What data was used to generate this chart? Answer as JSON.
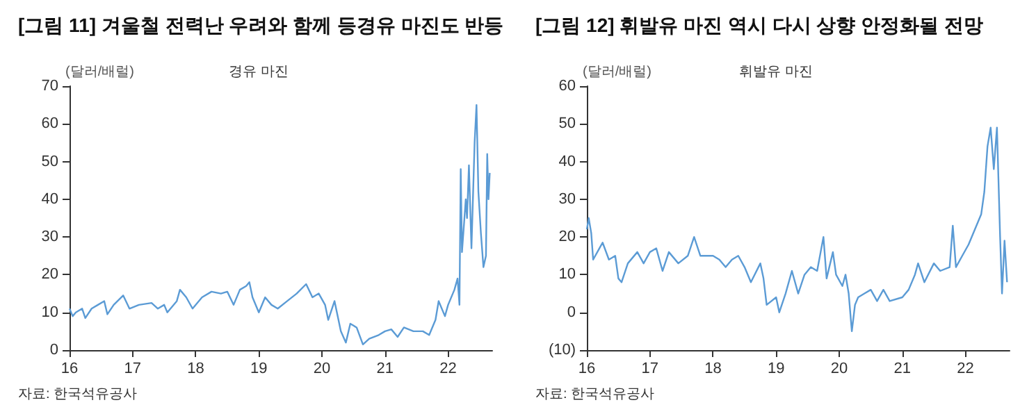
{
  "chart_data": [
    {
      "type": "line",
      "title": "[그림 11] 겨울철 전력난 우려와 함께 등경유 마진도 반등",
      "subtitle": "경유 마진",
      "ylabel": "(달러/배럴)",
      "annotations": [
        "자료: 한국석유공사"
      ],
      "series": [
        {
          "color": "#5b9bd5",
          "x": [
            16.0,
            16.05,
            16.1,
            16.2,
            16.25,
            16.35,
            16.45,
            16.55,
            16.6,
            16.7,
            16.85,
            16.95,
            17.1,
            17.3,
            17.4,
            17.5,
            17.55,
            17.7,
            17.75,
            17.85,
            17.95,
            18.1,
            18.25,
            18.4,
            18.5,
            18.6,
            18.7,
            18.8,
            18.85,
            18.9,
            19.0,
            19.1,
            19.2,
            19.3,
            19.45,
            19.6,
            19.75,
            19.85,
            19.95,
            20.05,
            20.1,
            20.2,
            20.3,
            20.38,
            20.45,
            20.55,
            20.65,
            20.75,
            20.9,
            21.0,
            21.1,
            21.2,
            21.3,
            21.45,
            21.6,
            21.7,
            21.8,
            21.85,
            21.95,
            22.0,
            22.1,
            22.15,
            22.18,
            22.2,
            22.22,
            22.28,
            22.3,
            22.33,
            22.37,
            22.42,
            22.45,
            22.48,
            22.52,
            22.56,
            22.6,
            22.62,
            22.64,
            22.66
          ],
          "values": [
            11,
            9,
            10,
            11,
            8.5,
            11,
            12,
            13,
            9.5,
            12,
            14.5,
            11,
            12,
            12.5,
            11,
            12,
            10,
            13,
            16,
            14,
            11,
            14,
            15.5,
            15,
            15.5,
            12,
            16,
            17,
            18,
            14,
            10,
            14,
            12,
            11,
            13,
            15,
            17.5,
            14,
            15,
            12,
            8,
            13,
            5,
            2,
            7,
            6,
            1.5,
            3,
            4,
            5,
            5.5,
            3.5,
            6,
            5,
            5,
            4,
            8,
            13,
            9,
            12,
            16,
            19,
            12,
            48,
            26,
            40,
            35,
            49,
            27,
            55,
            65,
            42,
            31,
            22,
            25,
            52,
            40,
            47
          ]
        }
      ],
      "xlim": [
        16,
        22.7
      ],
      "xticks": [
        {
          "value": 16,
          "label": "16"
        },
        {
          "value": 17,
          "label": "17"
        },
        {
          "value": 18,
          "label": "18"
        },
        {
          "value": 19,
          "label": "19"
        },
        {
          "value": 20,
          "label": "20"
        },
        {
          "value": 21,
          "label": "21"
        },
        {
          "value": 22,
          "label": "22"
        }
      ],
      "ylim": [
        0,
        70
      ],
      "yticks": [
        0,
        10,
        20,
        30,
        40,
        50,
        60,
        70
      ],
      "grid": false,
      "marker": "none",
      "line_style": "solid"
    },
    {
      "type": "line",
      "title": "[그림 12] 휘발유 마진 역시 다시 상향 안정화될 전망",
      "subtitle": "휘발유 마진",
      "ylabel": "(달러/배럴)",
      "annotations": [
        "자료: 한국석유공사"
      ],
      "series": [
        {
          "color": "#5b9bd5",
          "x": [
            16.0,
            16.03,
            16.07,
            16.1,
            16.2,
            16.25,
            16.35,
            16.45,
            16.5,
            16.55,
            16.65,
            16.8,
            16.9,
            17.0,
            17.1,
            17.2,
            17.3,
            17.45,
            17.6,
            17.7,
            17.8,
            18.0,
            18.1,
            18.2,
            18.3,
            18.4,
            18.5,
            18.6,
            18.75,
            18.8,
            18.85,
            19.0,
            19.05,
            19.15,
            19.25,
            19.35,
            19.45,
            19.55,
            19.65,
            19.75,
            19.8,
            19.9,
            19.95,
            20.05,
            20.1,
            20.15,
            20.2,
            20.25,
            20.3,
            20.4,
            20.5,
            20.6,
            20.7,
            20.8,
            21.0,
            21.1,
            21.2,
            21.25,
            21.35,
            21.5,
            21.6,
            21.75,
            21.8,
            21.85,
            21.95,
            22.05,
            22.15,
            22.25,
            22.3,
            22.35,
            22.4,
            22.45,
            22.5,
            22.55,
            22.58,
            22.62,
            22.66
          ],
          "values": [
            22,
            25,
            21,
            14,
            17,
            18.5,
            14,
            15,
            9,
            8,
            13,
            16,
            13,
            16,
            17,
            11,
            16,
            13,
            15,
            20,
            15,
            15,
            14,
            12,
            14,
            15,
            12,
            8,
            13,
            9,
            2,
            4,
            0,
            5,
            11,
            5,
            10,
            12,
            11,
            20,
            9,
            16,
            10,
            7,
            10,
            5,
            -5,
            2,
            4,
            5,
            6,
            3,
            6,
            3,
            4,
            6,
            10,
            13,
            8,
            13,
            11,
            12,
            23,
            12,
            15,
            18,
            22,
            26,
            32,
            44,
            49,
            38,
            49,
            20,
            5,
            19,
            8
          ]
        }
      ],
      "xlim": [
        16,
        22.7
      ],
      "xticks": [
        {
          "value": 16,
          "label": "16"
        },
        {
          "value": 17,
          "label": "17"
        },
        {
          "value": 18,
          "label": "18"
        },
        {
          "value": 19,
          "label": "19"
        },
        {
          "value": 20,
          "label": "20"
        },
        {
          "value": 21,
          "label": "21"
        },
        {
          "value": 22,
          "label": "22"
        }
      ],
      "ylim": [
        -10,
        60
      ],
      "yticks": [
        {
          "value": -10,
          "label": "(10)"
        },
        0,
        10,
        20,
        30,
        40,
        50,
        60
      ],
      "grid": false,
      "marker": "none",
      "line_style": "solid"
    }
  ]
}
